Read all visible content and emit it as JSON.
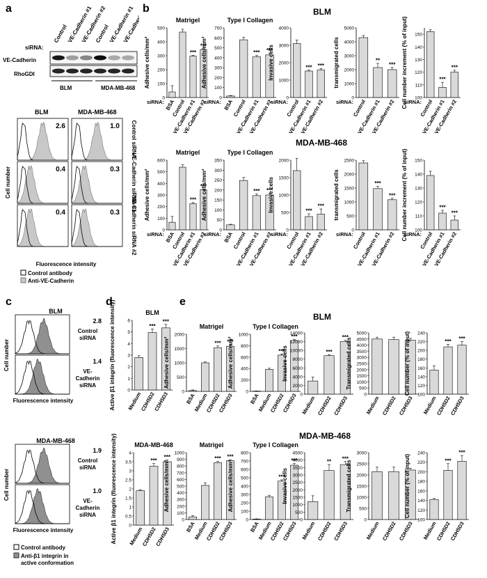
{
  "panel_letters": [
    "a",
    "b",
    "c",
    "d",
    "e"
  ],
  "western": {
    "sirna_label": "siRNA:",
    "lanes": [
      "Control",
      "VE-Cadherin #1",
      "VE-Cadherin #2",
      "Control",
      "VE-Cadherin #1",
      "VE-Cadherin #2"
    ],
    "rows": [
      "VE-Cadherin",
      "RhoGDI"
    ],
    "groups": [
      "BLM",
      "MDA-MB-468"
    ]
  },
  "flow_a": {
    "col_titles": [
      "BLM",
      "MDA-MB-468"
    ],
    "row_labels": [
      "Control siRNA",
      "VE-Cadherin siRNA #1",
      "VE-Cadherin siRNA #2"
    ],
    "values": [
      [
        "2.6",
        "1.0"
      ],
      [
        "0.4",
        "0.3"
      ],
      [
        "0.4",
        "0.3"
      ]
    ],
    "ylabel": "Cell number",
    "xlabel": "Fluorescence intensity",
    "legend": [
      "Control antibody",
      "Anti-VE-Cadherin"
    ]
  },
  "flow_c": {
    "groups": [
      {
        "title": "BLM",
        "values": [
          "2.8",
          "1.4"
        ],
        "rows": [
          "Control siRNA",
          "VE-Cadherin siRNA"
        ]
      },
      {
        "title": "MDA-MB-468",
        "values": [
          "1.9",
          "1.0"
        ],
        "rows": [
          "Control siRNA",
          "VE-Cadherin siRNA"
        ]
      }
    ],
    "ylabel": "Cell number",
    "xlabel": "Fluorescence intensity",
    "legend": [
      "Control antibody",
      "Anti-β1 integrin in active conformation"
    ]
  },
  "section_titles": {
    "b_blm": "BLM",
    "b_mda": "MDA-MB-468",
    "e_blm": "BLM",
    "e_mda": "MDA-MB-468"
  },
  "chart_data": [
    {
      "id": "b1",
      "type": "bar",
      "title": "Matrigel",
      "ylabel": "Adhesive cells/mm²",
      "categories": [
        "BSA",
        "Control",
        "VE-Cadherin #1",
        "VE-Cadherin #2"
      ],
      "values": [
        40,
        470,
        297,
        345
      ],
      "errors": [
        45,
        20,
        5,
        5
      ],
      "sig": [
        "",
        "",
        "***",
        "***"
      ],
      "ylim": [
        0,
        500
      ],
      "ticks": [
        0,
        100,
        200,
        300,
        400,
        500
      ],
      "xprefix": "siRNA:"
    },
    {
      "id": "b2",
      "type": "bar",
      "title": "Type I Collagen",
      "ylabel": "Adhesive cells/mm²",
      "categories": [
        "BSA",
        "Control",
        "VE-Cadherin #1",
        "VE-Cadherin #2"
      ],
      "values": [
        15,
        580,
        408,
        428
      ],
      "errors": [
        5,
        25,
        15,
        15
      ],
      "sig": [
        "",
        "",
        "***",
        "***"
      ],
      "ylim": [
        0,
        700
      ],
      "ticks": [
        0,
        100,
        200,
        300,
        400,
        500,
        600,
        700
      ],
      "xprefix": "siRNA:"
    },
    {
      "id": "b3",
      "type": "bar",
      "ylabel": "Invasive cells",
      "categories": [
        "Control",
        "VE-Cadherin #1",
        "VE-Cadherin #2"
      ],
      "values": [
        3100,
        1520,
        1580
      ],
      "errors": [
        200,
        50,
        80
      ],
      "sig": [
        "",
        "***",
        "***"
      ],
      "ylim": [
        0,
        4000
      ],
      "ticks": [
        0,
        1000,
        2000,
        3000,
        4000
      ],
      "xprefix": "siRNA:"
    },
    {
      "id": "b4",
      "type": "bar",
      "ylabel": "transmigrated cells",
      "categories": [
        "Control",
        "VE-Cadherin #1",
        "VE-Cadherin #2"
      ],
      "values": [
        4300,
        2150,
        2000
      ],
      "errors": [
        150,
        300,
        150
      ],
      "sig": [
        "",
        "**",
        "***"
      ],
      "ylim": [
        0,
        5000
      ],
      "ticks": [
        0,
        1000,
        2000,
        3000,
        4000,
        5000
      ],
      "xprefix": "siRNA:"
    },
    {
      "id": "b5",
      "type": "bar",
      "ylabel": "Cell number increment (% of input)",
      "categories": [
        "Control",
        "VE-Cadherin #1",
        "VE-Cadherin #2"
      ],
      "values": [
        152,
        108,
        120
      ],
      "errors": [
        1.5,
        4,
        1.5
      ],
      "sig": [
        "",
        "***",
        "***"
      ],
      "ylim": [
        100,
        155
      ],
      "ticks": [
        100,
        110,
        120,
        130,
        140,
        150
      ],
      "xprefix": "siRNA:"
    },
    {
      "id": "b6",
      "type": "bar",
      "title": "Matrigel",
      "ylabel": "Adhesive cells/mm²",
      "categories": [
        "BSA",
        "Control",
        "VE-Cadherin #1",
        "VE-Cadherin #2"
      ],
      "values": [
        65,
        540,
        225,
        345
      ],
      "errors": [
        50,
        20,
        10,
        5
      ],
      "sig": [
        "",
        "",
        "***",
        "***"
      ],
      "ylim": [
        0,
        600
      ],
      "ticks": [
        0,
        100,
        200,
        300,
        400,
        500,
        600
      ],
      "xprefix": "siRNA:"
    },
    {
      "id": "b7",
      "type": "bar",
      "title": "Type I Collagen",
      "ylabel": "Adhesive cells/mm²",
      "categories": [
        "BSA",
        "Control",
        "VE-Cadherin #1",
        "VE-Cadherin #2"
      ],
      "values": [
        25,
        248,
        172,
        175
      ],
      "errors": [
        3,
        15,
        8,
        8
      ],
      "sig": [
        "",
        "",
        "***",
        "***"
      ],
      "ylim": [
        0,
        350
      ],
      "ticks": [
        0,
        50,
        100,
        150,
        200,
        250,
        300,
        350
      ],
      "xprefix": "siRNA:"
    },
    {
      "id": "b8",
      "type": "bar",
      "ylabel": "Invasive cells",
      "categories": [
        "Control",
        "VE-Cadherin #1",
        "VE-Cadherin #2"
      ],
      "values": [
        1700,
        380,
        450
      ],
      "errors": [
        350,
        80,
        150
      ],
      "sig": [
        "",
        "***",
        "***"
      ],
      "ylim": [
        0,
        2000
      ],
      "ticks": [
        0,
        500,
        1000,
        1500,
        2000
      ],
      "xprefix": "siRNA:"
    },
    {
      "id": "b9",
      "type": "bar",
      "ylabel": "transmigrated cells",
      "categories": [
        "Control",
        "VE-Cadherin #1",
        "VE-Cadherin #2"
      ],
      "values": [
        2400,
        1480,
        1080
      ],
      "errors": [
        80,
        80,
        50
      ],
      "sig": [
        "",
        "***",
        "***"
      ],
      "ylim": [
        0,
        2500
      ],
      "ticks": [
        0,
        500,
        1000,
        1500,
        2000,
        2500
      ],
      "xprefix": "siRNA:"
    },
    {
      "id": "b10",
      "type": "bar",
      "ylabel": "Cell number increment (% of input)",
      "categories": [
        "Control",
        "VE-Cadherin #1",
        "VE-Cadherin #2"
      ],
      "values": [
        139,
        112,
        107
      ],
      "errors": [
        3,
        2,
        3
      ],
      "sig": [
        "",
        "***",
        "***"
      ],
      "ylim": [
        100,
        150
      ],
      "ticks": [
        100,
        110,
        120,
        130,
        140,
        150
      ],
      "xprefix": "siRNA:"
    },
    {
      "id": "d1",
      "type": "bar",
      "title": "BLM",
      "ylabel": "Active β1 integrin (fluorescence intensity)",
      "categories": [
        "Medium",
        "CDH5D2",
        "CDH5D3"
      ],
      "values": [
        2.8,
        4.95,
        5.35
      ],
      "errors": [
        0.15,
        0.3,
        0.3
      ],
      "sig": [
        "",
        "***",
        "***"
      ],
      "ylim": [
        0,
        6
      ],
      "ticks": [
        0,
        1,
        2,
        3,
        4,
        5,
        6
      ]
    },
    {
      "id": "e1",
      "type": "bar",
      "title": "Matrigel",
      "ylabel": "Adhesive cells/mm²",
      "categories": [
        "BSA",
        "Medium",
        "CDH5D2",
        "CDH5D3"
      ],
      "values": [
        30,
        1000,
        1530,
        1580
      ],
      "errors": [
        20,
        30,
        60,
        50
      ],
      "sig": [
        "",
        "",
        "***",
        "***"
      ],
      "ylim": [
        0,
        2000
      ],
      "ticks": [
        0,
        500,
        1000,
        1500,
        2000
      ]
    },
    {
      "id": "e2",
      "type": "bar",
      "title": "Type I Collagen",
      "ylabel": "Adhesive cells/mm²",
      "categories": [
        "BSA",
        "Medium",
        "CDH5D2",
        "CDH5D3"
      ],
      "values": [
        5,
        385,
        635,
        890
      ],
      "errors": [
        3,
        20,
        20,
        20
      ],
      "sig": [
        "",
        "",
        "***",
        "***"
      ],
      "ylim": [
        0,
        1000
      ],
      "ticks": [
        0,
        200,
        400,
        600,
        800,
        1000
      ]
    },
    {
      "id": "e3",
      "type": "bar",
      "ylabel": "Invasive cells",
      "categories": [
        "Medium",
        "CDH5D2",
        "CDH5D3"
      ],
      "values": [
        3000,
        8800,
        12000
      ],
      "errors": [
        900,
        200,
        300
      ],
      "sig": [
        "",
        "***",
        "***"
      ],
      "ylim": [
        0,
        14000
      ],
      "ticks": [
        0,
        2000,
        4000,
        6000,
        8000,
        10000,
        12000,
        14000
      ]
    },
    {
      "id": "e4",
      "type": "bar",
      "ylabel": "Transmigrated cells",
      "categories": [
        "Medium",
        "CDH5D2",
        "CDH5D3"
      ],
      "values": [
        4500,
        4450,
        4400
      ],
      "errors": [
        150,
        200,
        150
      ],
      "sig": [
        "",
        "",
        ""
      ],
      "ylim": [
        0,
        5000
      ],
      "ticks": [
        0,
        500,
        1000,
        1500,
        2000,
        2500,
        3000,
        3500,
        4000,
        4500,
        5000
      ]
    },
    {
      "id": "e5",
      "type": "bar",
      "ylabel": "Cell number (% of input)",
      "categories": [
        "Medium",
        "CDH5D2",
        "CDH5D3"
      ],
      "values": [
        155,
        208,
        212
      ],
      "errors": [
        10,
        6,
        8
      ],
      "sig": [
        "",
        "***",
        "***"
      ],
      "ylim": [
        100,
        240
      ],
      "ticks": [
        100,
        120,
        140,
        160,
        180,
        200,
        220,
        240
      ]
    },
    {
      "id": "d2",
      "type": "bar",
      "title": "MDA-MB-468",
      "ylabel": "Active β1 integrin (fluorescence intensity)",
      "categories": [
        "Medium",
        "CDH5D2",
        "CDH5D3"
      ],
      "values": [
        1.9,
        3.25,
        3.5
      ],
      "errors": [
        0.05,
        0.15,
        0.1
      ],
      "sig": [
        "",
        "***",
        "***"
      ],
      "ylim": [
        0,
        4
      ],
      "ticks": [
        0,
        0.5,
        1,
        1.5,
        2,
        2.5,
        3,
        3.5,
        4
      ]
    },
    {
      "id": "e6",
      "type": "bar",
      "title": "Matrigel",
      "ylabel": "Adhesive cells/mm²",
      "categories": [
        "BSA",
        "Medium",
        "CDH5D2",
        "CDH5D3"
      ],
      "values": [
        40,
        510,
        850,
        880
      ],
      "errors": [
        20,
        40,
        20,
        15
      ],
      "sig": [
        "",
        "",
        "***",
        "***"
      ],
      "ylim": [
        0,
        1000
      ],
      "ticks": [
        0,
        100,
        200,
        300,
        400,
        500,
        600,
        700,
        800,
        900,
        1000
      ]
    },
    {
      "id": "e7",
      "type": "bar",
      "title": "Type I Collagen",
      "ylabel": "Adhesive cells/mm²",
      "categories": [
        "BSA",
        "Medium",
        "CDH5D2",
        "CDH5D3"
      ],
      "values": [
        5,
        270,
        460,
        650
      ],
      "errors": [
        3,
        20,
        15,
        20
      ],
      "sig": [
        "",
        "",
        "***",
        "***"
      ],
      "ylim": [
        0,
        800
      ],
      "ticks": [
        0,
        100,
        200,
        300,
        400,
        500,
        600,
        700,
        800
      ]
    },
    {
      "id": "e8",
      "type": "bar",
      "ylabel": "Invasive cells",
      "categories": [
        "Medium",
        "CDH5D2",
        "CDH5D3"
      ],
      "values": [
        1200,
        3300,
        3700
      ],
      "errors": [
        400,
        400,
        200
      ],
      "sig": [
        "",
        "**",
        "***"
      ],
      "ylim": [
        0,
        4500
      ],
      "ticks": [
        0,
        500,
        1000,
        1500,
        2000,
        2500,
        3000,
        3500,
        4000,
        4500
      ]
    },
    {
      "id": "e9",
      "type": "bar",
      "ylabel": "Transmigrated cells",
      "categories": [
        "Medium",
        "CDH5D2",
        "CDH5D3"
      ],
      "values": [
        2150,
        2150,
        2220
      ],
      "errors": [
        200,
        200,
        80
      ],
      "sig": [
        "",
        "",
        ""
      ],
      "ylim": [
        0,
        3000
      ],
      "ticks": [
        0,
        500,
        1000,
        1500,
        2000,
        2500,
        3000
      ]
    },
    {
      "id": "e10",
      "type": "bar",
      "ylabel": "Cell number (% of input)",
      "categories": [
        "Medium",
        "CDH5D2",
        "CDH5D3"
      ],
      "values": [
        142,
        203,
        222
      ],
      "errors": [
        2,
        14,
        12
      ],
      "sig": [
        "",
        "***",
        "***"
      ],
      "ylim": [
        100,
        240
      ],
      "ticks": [
        100,
        120,
        140,
        160,
        180,
        200,
        220,
        240
      ]
    }
  ]
}
